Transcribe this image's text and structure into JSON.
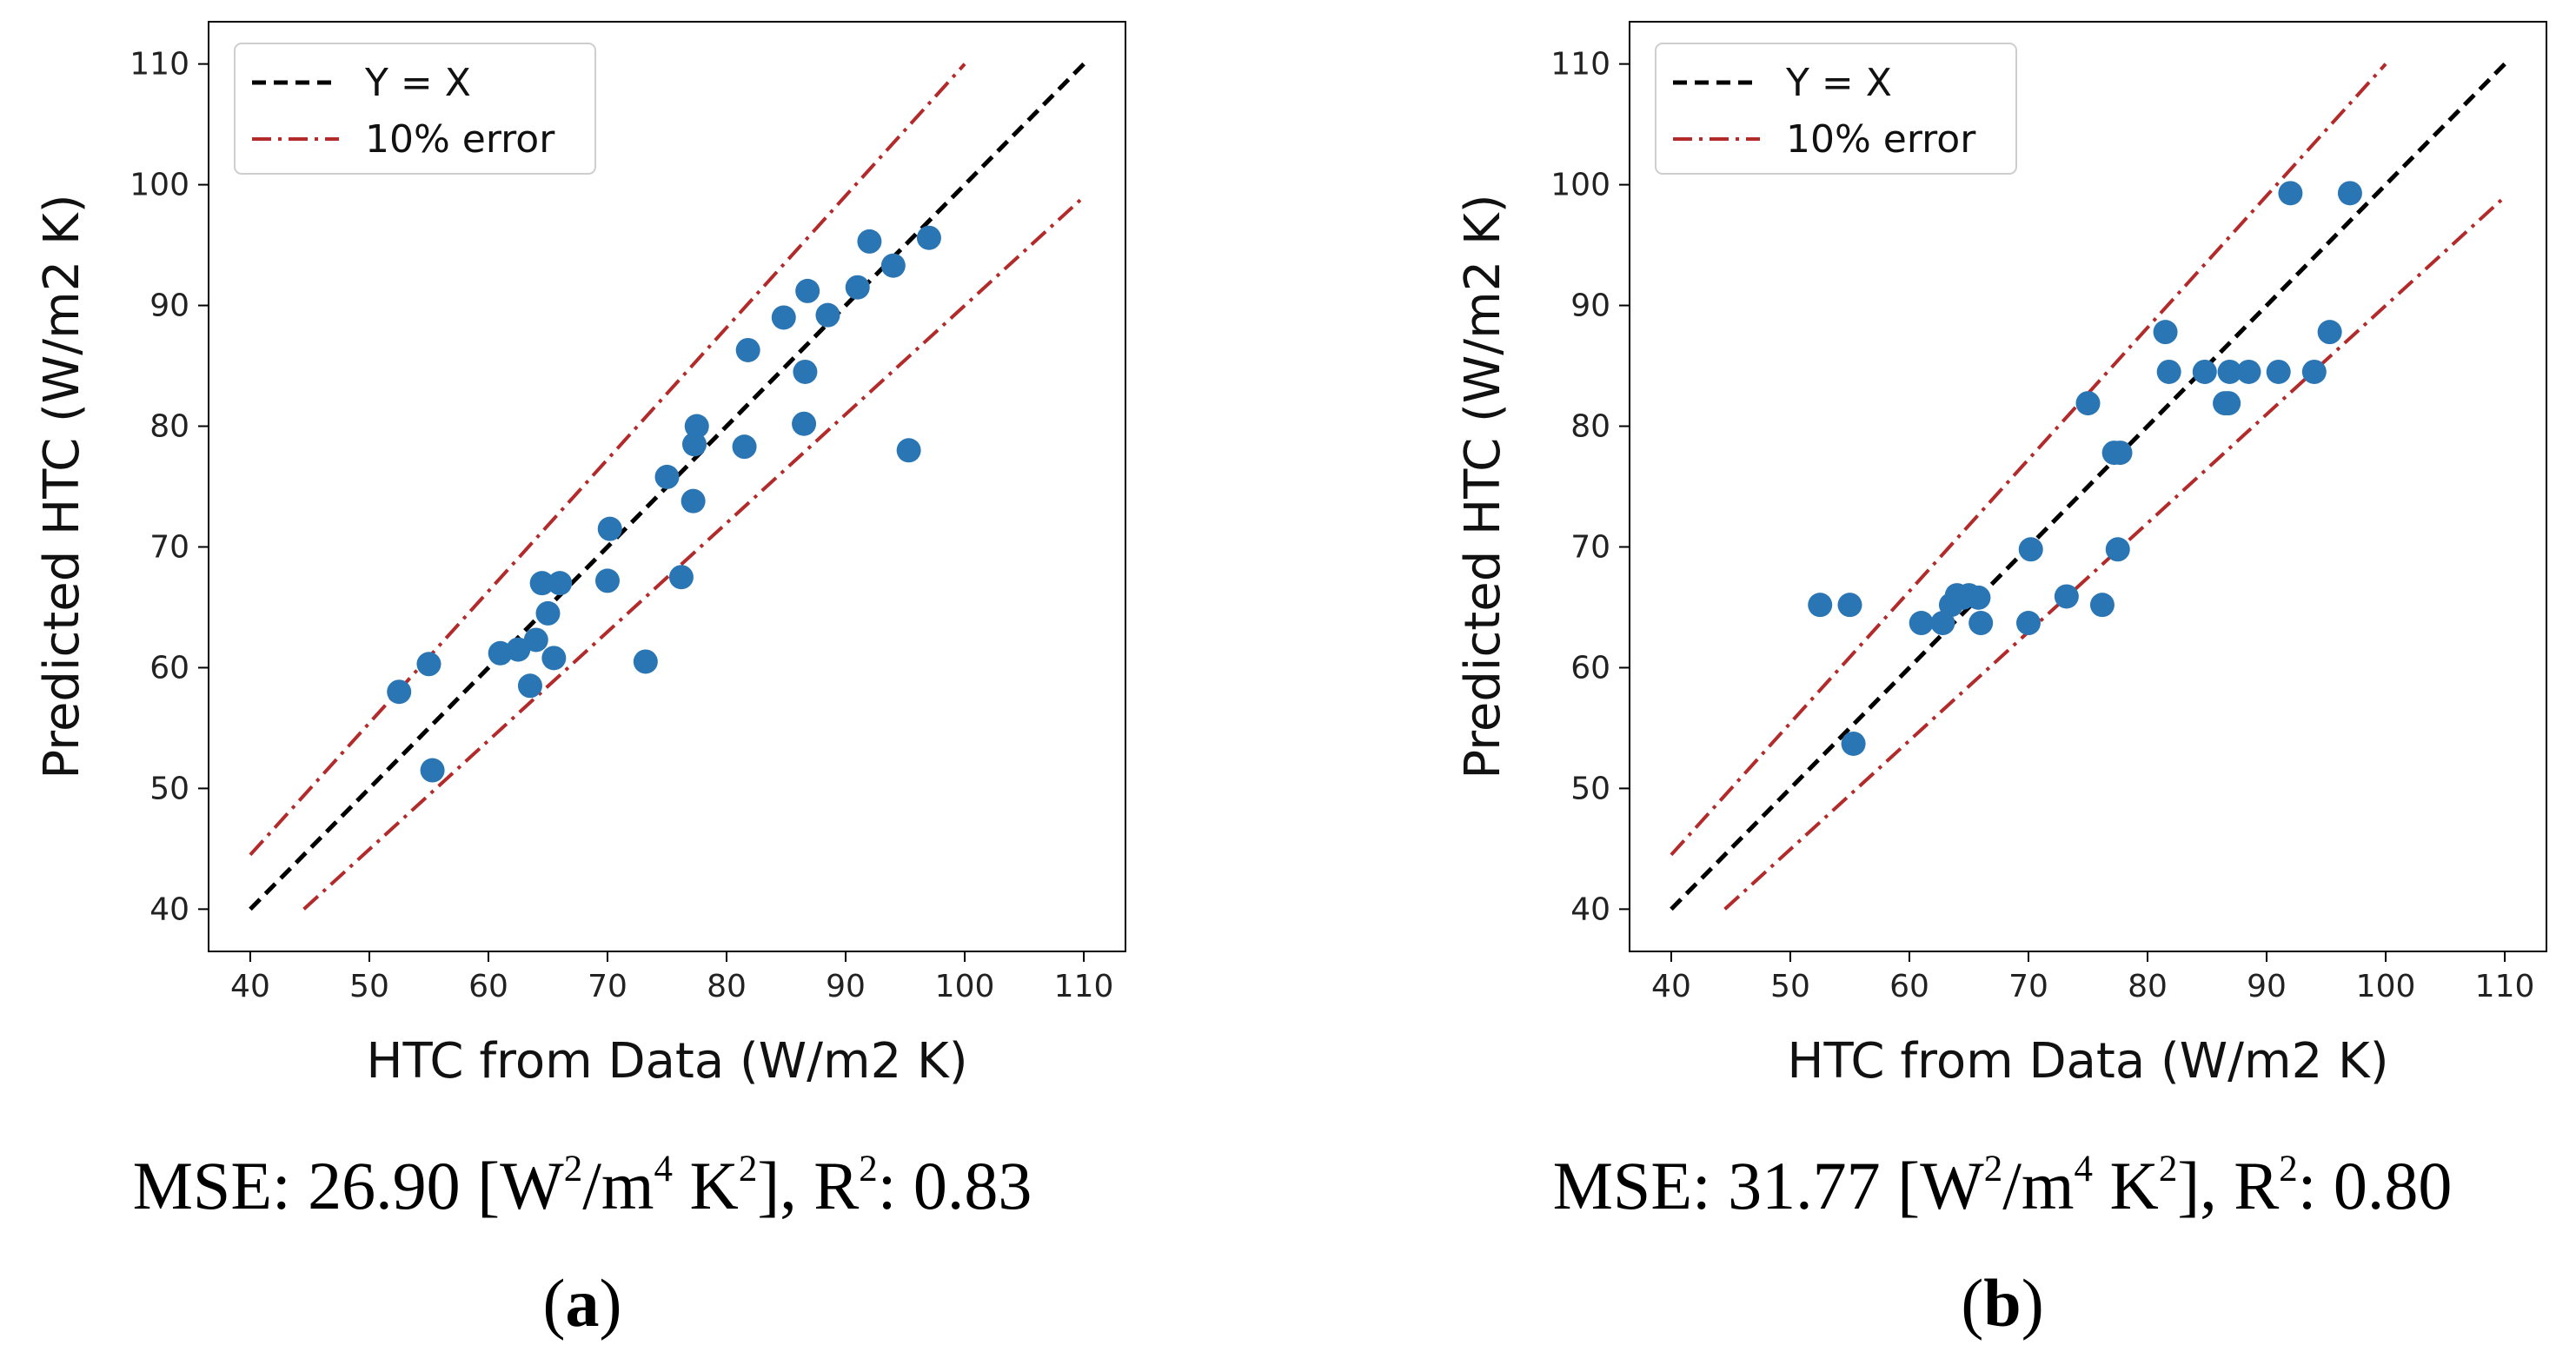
{
  "chart_data": [
    {
      "type": "scatter",
      "panel": "a",
      "xlabel": "HTC from Data (W/m2 K)",
      "ylabel": "Predicted HTC (W/m2 K)",
      "xlim": [
        36.5,
        113.5
      ],
      "ylim": [
        36.5,
        113.5
      ],
      "xticks": [
        40,
        50,
        60,
        70,
        80,
        90,
        100,
        110
      ],
      "yticks": [
        40,
        50,
        60,
        70,
        80,
        90,
        100,
        110
      ],
      "legend": {
        "position": "top-left",
        "entries": [
          "Y = X",
          "10% error"
        ]
      },
      "colors": {
        "points": "#2a76b4",
        "yx": "#000000",
        "error": "#b22a2a"
      },
      "lines": {
        "yx": {
          "x": [
            40,
            110
          ],
          "y": [
            40,
            110
          ]
        },
        "upper": {
          "x": [
            40,
            100
          ],
          "y": [
            44.5,
            110
          ]
        },
        "lower": {
          "x": [
            44.5,
            110
          ],
          "y": [
            40,
            99
          ]
        }
      },
      "x": [
        52.5,
        55.0,
        55.3,
        61.0,
        62.5,
        63.5,
        64.0,
        64.5,
        65.0,
        65.5,
        66.0,
        70.0,
        70.2,
        73.2,
        75.0,
        76.2,
        77.2,
        77.3,
        77.5,
        81.5,
        81.8,
        84.8,
        86.5,
        86.6,
        86.8,
        88.5,
        91.0,
        92.0,
        94.0,
        95.3,
        97.0
      ],
      "y": [
        58.0,
        60.3,
        51.5,
        61.2,
        61.5,
        58.5,
        62.3,
        67.0,
        64.5,
        60.8,
        67.0,
        67.2,
        71.5,
        60.5,
        75.8,
        67.5,
        73.8,
        78.5,
        80.0,
        78.3,
        86.3,
        89.0,
        80.2,
        84.5,
        91.2,
        89.2,
        91.5,
        95.3,
        93.3,
        78.0,
        95.6
      ],
      "caption": {
        "mse": "26.90",
        "mse_unit_1": "W",
        "mse_unit_2": "/m",
        "mse_unit_3": "4",
        "mse_unit_4": " K",
        "r2": "0.83",
        "label": "a"
      }
    },
    {
      "type": "scatter",
      "panel": "b",
      "xlabel": "HTC from Data (W/m2 K)",
      "ylabel": "Predicted HTC (W/m2 K)",
      "xlim": [
        36.5,
        113.5
      ],
      "ylim": [
        36.5,
        113.5
      ],
      "xticks": [
        40,
        50,
        60,
        70,
        80,
        90,
        100,
        110
      ],
      "yticks": [
        40,
        50,
        60,
        70,
        80,
        90,
        100,
        110
      ],
      "legend": {
        "position": "top-left",
        "entries": [
          "Y = X",
          "10% error"
        ]
      },
      "colors": {
        "points": "#2a76b4",
        "yx": "#000000",
        "error": "#b22a2a"
      },
      "lines": {
        "yx": {
          "x": [
            40,
            110
          ],
          "y": [
            40,
            110
          ]
        },
        "upper": {
          "x": [
            40,
            100
          ],
          "y": [
            44.5,
            110
          ]
        },
        "lower": {
          "x": [
            44.5,
            110
          ],
          "y": [
            40,
            99
          ]
        }
      },
      "x": [
        52.5,
        55.0,
        55.3,
        61.0,
        62.8,
        63.5,
        64.0,
        64.5,
        65.0,
        65.8,
        66.0,
        70.0,
        70.2,
        73.2,
        75.0,
        76.2,
        77.2,
        77.5,
        77.7,
        81.5,
        81.8,
        84.8,
        86.5,
        86.8,
        86.9,
        88.5,
        91.0,
        92.0,
        94.0,
        95.3,
        97.0
      ],
      "y": [
        65.2,
        65.2,
        53.7,
        63.7,
        63.7,
        65.2,
        66.0,
        65.8,
        66.0,
        65.8,
        63.7,
        63.7,
        69.8,
        65.9,
        81.9,
        65.2,
        77.8,
        69.8,
        77.8,
        87.8,
        84.5,
        84.5,
        81.9,
        81.9,
        84.5,
        84.5,
        84.5,
        99.3,
        84.5,
        87.8,
        99.3
      ],
      "caption": {
        "mse": "31.77",
        "mse_unit_1": "W",
        "mse_unit_2": "/m",
        "mse_unit_3": "4",
        "mse_unit_4": " K",
        "r2": "0.80",
        "label": "b"
      }
    }
  ],
  "captions": [
    {
      "prefix": "MSE: 26.90 [W",
      "sup1": "2",
      "mid1": "/m",
      "sup2": "4",
      "mid2": " K",
      "sup3": "2",
      "mid3": "], R",
      "sup4": "2",
      "suffix": ": 0.83",
      "open": "(",
      "label": "a",
      "close": ")"
    },
    {
      "prefix": "MSE: 31.77 [W",
      "sup1": "2",
      "mid1": "/m",
      "sup2": "4",
      "mid2": " K",
      "sup3": "2",
      "mid3": "], R",
      "sup4": "2",
      "suffix": ": 0.80",
      "open": "(",
      "label": "b",
      "close": ")"
    }
  ]
}
